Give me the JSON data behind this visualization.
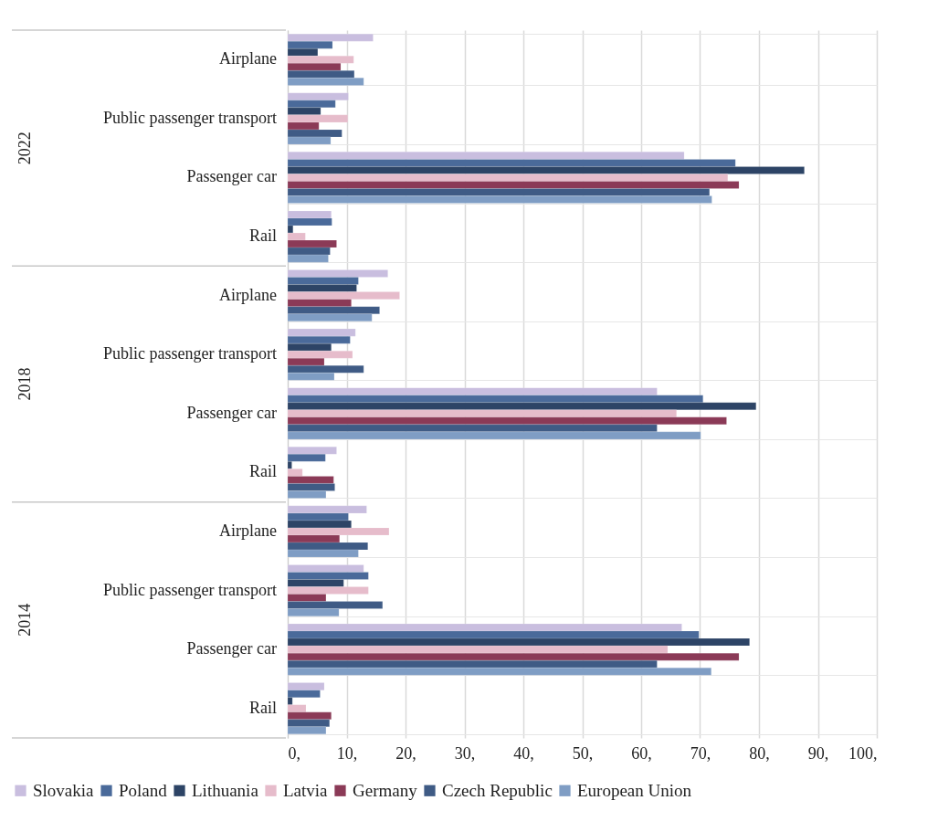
{
  "chart_data": {
    "type": "bar",
    "orientation": "horizontal",
    "categories": [
      "Airplane",
      "Public passenger transport",
      "Passenger car",
      "Rail",
      "Airplane",
      "Public passenger transport",
      "Passenger car",
      "Rail",
      "Airplane",
      "Public passenger transport",
      "Passenger car",
      "Rail"
    ],
    "annotations": [
      "2022",
      "2018",
      "2014"
    ],
    "series": [
      {
        "name": "Slovakia",
        "color": "#c9bedf",
        "values": [
          14.5,
          10.3,
          67.3,
          7.4,
          17.0,
          11.5,
          62.7,
          8.3,
          13.4,
          12.9,
          66.9,
          6.2
        ]
      },
      {
        "name": "Poland",
        "color": "#4a6a9a",
        "values": [
          7.6,
          8.1,
          76.0,
          7.5,
          12.0,
          10.6,
          70.5,
          6.4,
          10.3,
          13.7,
          69.8,
          5.5
        ]
      },
      {
        "name": "Lithuania",
        "color": "#2d4466",
        "values": [
          5.1,
          5.6,
          87.7,
          0.9,
          11.7,
          7.4,
          79.5,
          0.7,
          10.8,
          9.5,
          78.4,
          0.8
        ]
      },
      {
        "name": "Latvia",
        "color": "#e6bccb",
        "values": [
          11.2,
          10.2,
          74.7,
          3.0,
          19.0,
          11.0,
          66.0,
          2.5,
          17.2,
          13.7,
          64.5,
          3.1
        ]
      },
      {
        "name": "Germany",
        "color": "#8b3a57",
        "values": [
          9.0,
          5.3,
          76.6,
          8.3,
          10.8,
          6.2,
          74.5,
          7.8,
          8.8,
          6.5,
          76.6,
          7.4
        ]
      },
      {
        "name": "Czech Republic",
        "color": "#3f5b85",
        "values": [
          11.3,
          9.2,
          71.6,
          7.2,
          15.6,
          12.9,
          62.7,
          8.0,
          13.6,
          16.1,
          62.7,
          7.1
        ]
      },
      {
        "name": "European Union",
        "color": "#7f9dc4",
        "values": [
          12.9,
          7.3,
          72.0,
          6.9,
          14.3,
          7.9,
          70.1,
          6.5,
          12.0,
          8.7,
          71.9,
          6.5
        ]
      }
    ],
    "xlim": [
      0,
      100
    ],
    "xticks": [
      {
        "value": 0,
        "label": "0,"
      },
      {
        "value": 10,
        "label": "10,"
      },
      {
        "value": 20,
        "label": "20,"
      },
      {
        "value": 30,
        "label": "30,"
      },
      {
        "value": 40,
        "label": "40,"
      },
      {
        "value": 50,
        "label": "50,"
      },
      {
        "value": 60,
        "label": "60,"
      },
      {
        "value": 70,
        "label": "70,"
      },
      {
        "value": 80,
        "label": "80,"
      },
      {
        "value": 90,
        "label": "90,"
      },
      {
        "value": 100,
        "label": "100,"
      }
    ],
    "grid": true,
    "legend": "bottom"
  }
}
